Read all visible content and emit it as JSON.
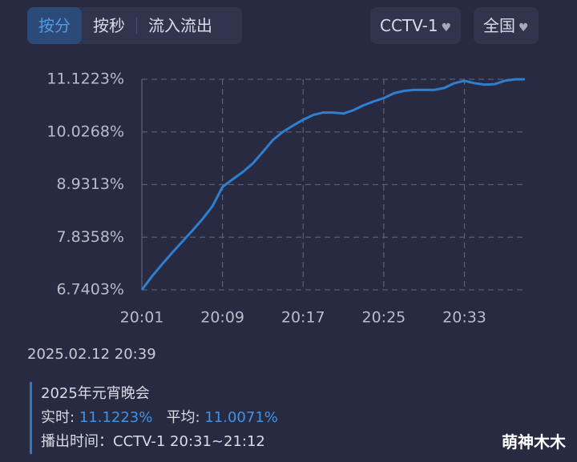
{
  "tabs": [
    "按分",
    "按秒",
    "流入流出"
  ],
  "dropdowns": [
    "CCTV-1",
    "全国"
  ],
  "chart_data": {
    "type": "line",
    "color": "#2f7fd0",
    "categories": [
      "20:01",
      null,
      null,
      null,
      null,
      null,
      null,
      null,
      "20:09",
      null,
      null,
      null,
      null,
      null,
      null,
      null,
      "20:17",
      null,
      null,
      null,
      null,
      null,
      null,
      null,
      "20:25",
      null,
      null,
      null,
      null,
      null,
      null,
      null,
      "20:33",
      null,
      null,
      null,
      null,
      null,
      null
    ],
    "values": [
      6.7403,
      7.02,
      7.27,
      7.51,
      7.74,
      7.97,
      8.21,
      8.48,
      8.88,
      9.04,
      9.19,
      9.37,
      9.61,
      9.86,
      10.03,
      10.16,
      10.28,
      10.38,
      10.43,
      10.43,
      10.41,
      10.48,
      10.58,
      10.66,
      10.73,
      10.83,
      10.88,
      10.9,
      10.9,
      10.9,
      10.94,
      11.04,
      11.09,
      11.04,
      11.01,
      11.02,
      11.09,
      11.12,
      11.1223
    ],
    "ylim": [
      6.7403,
      11.1223
    ],
    "yticks": [
      {
        "value": 6.7403,
        "label": "6.7403%"
      },
      {
        "value": 7.8358,
        "label": "7.8358%"
      },
      {
        "value": 8.9313,
        "label": "8.9313%"
      },
      {
        "value": 10.0268,
        "label": "10.0268%"
      },
      {
        "value": 11.1223,
        "label": "11.1223%"
      }
    ],
    "grid": true
  },
  "info": {
    "timestamp": "2025.02.12 20:39",
    "program": "2025年元宵晚会",
    "realtime_label": "实时:",
    "realtime_value": "11.1223%",
    "average_label": "平均:",
    "average_value": "11.0071%",
    "broadcast_label": "播出时间：",
    "broadcast_time": "CCTV-1 20:31~21:12"
  },
  "watermark": "萌神木木"
}
